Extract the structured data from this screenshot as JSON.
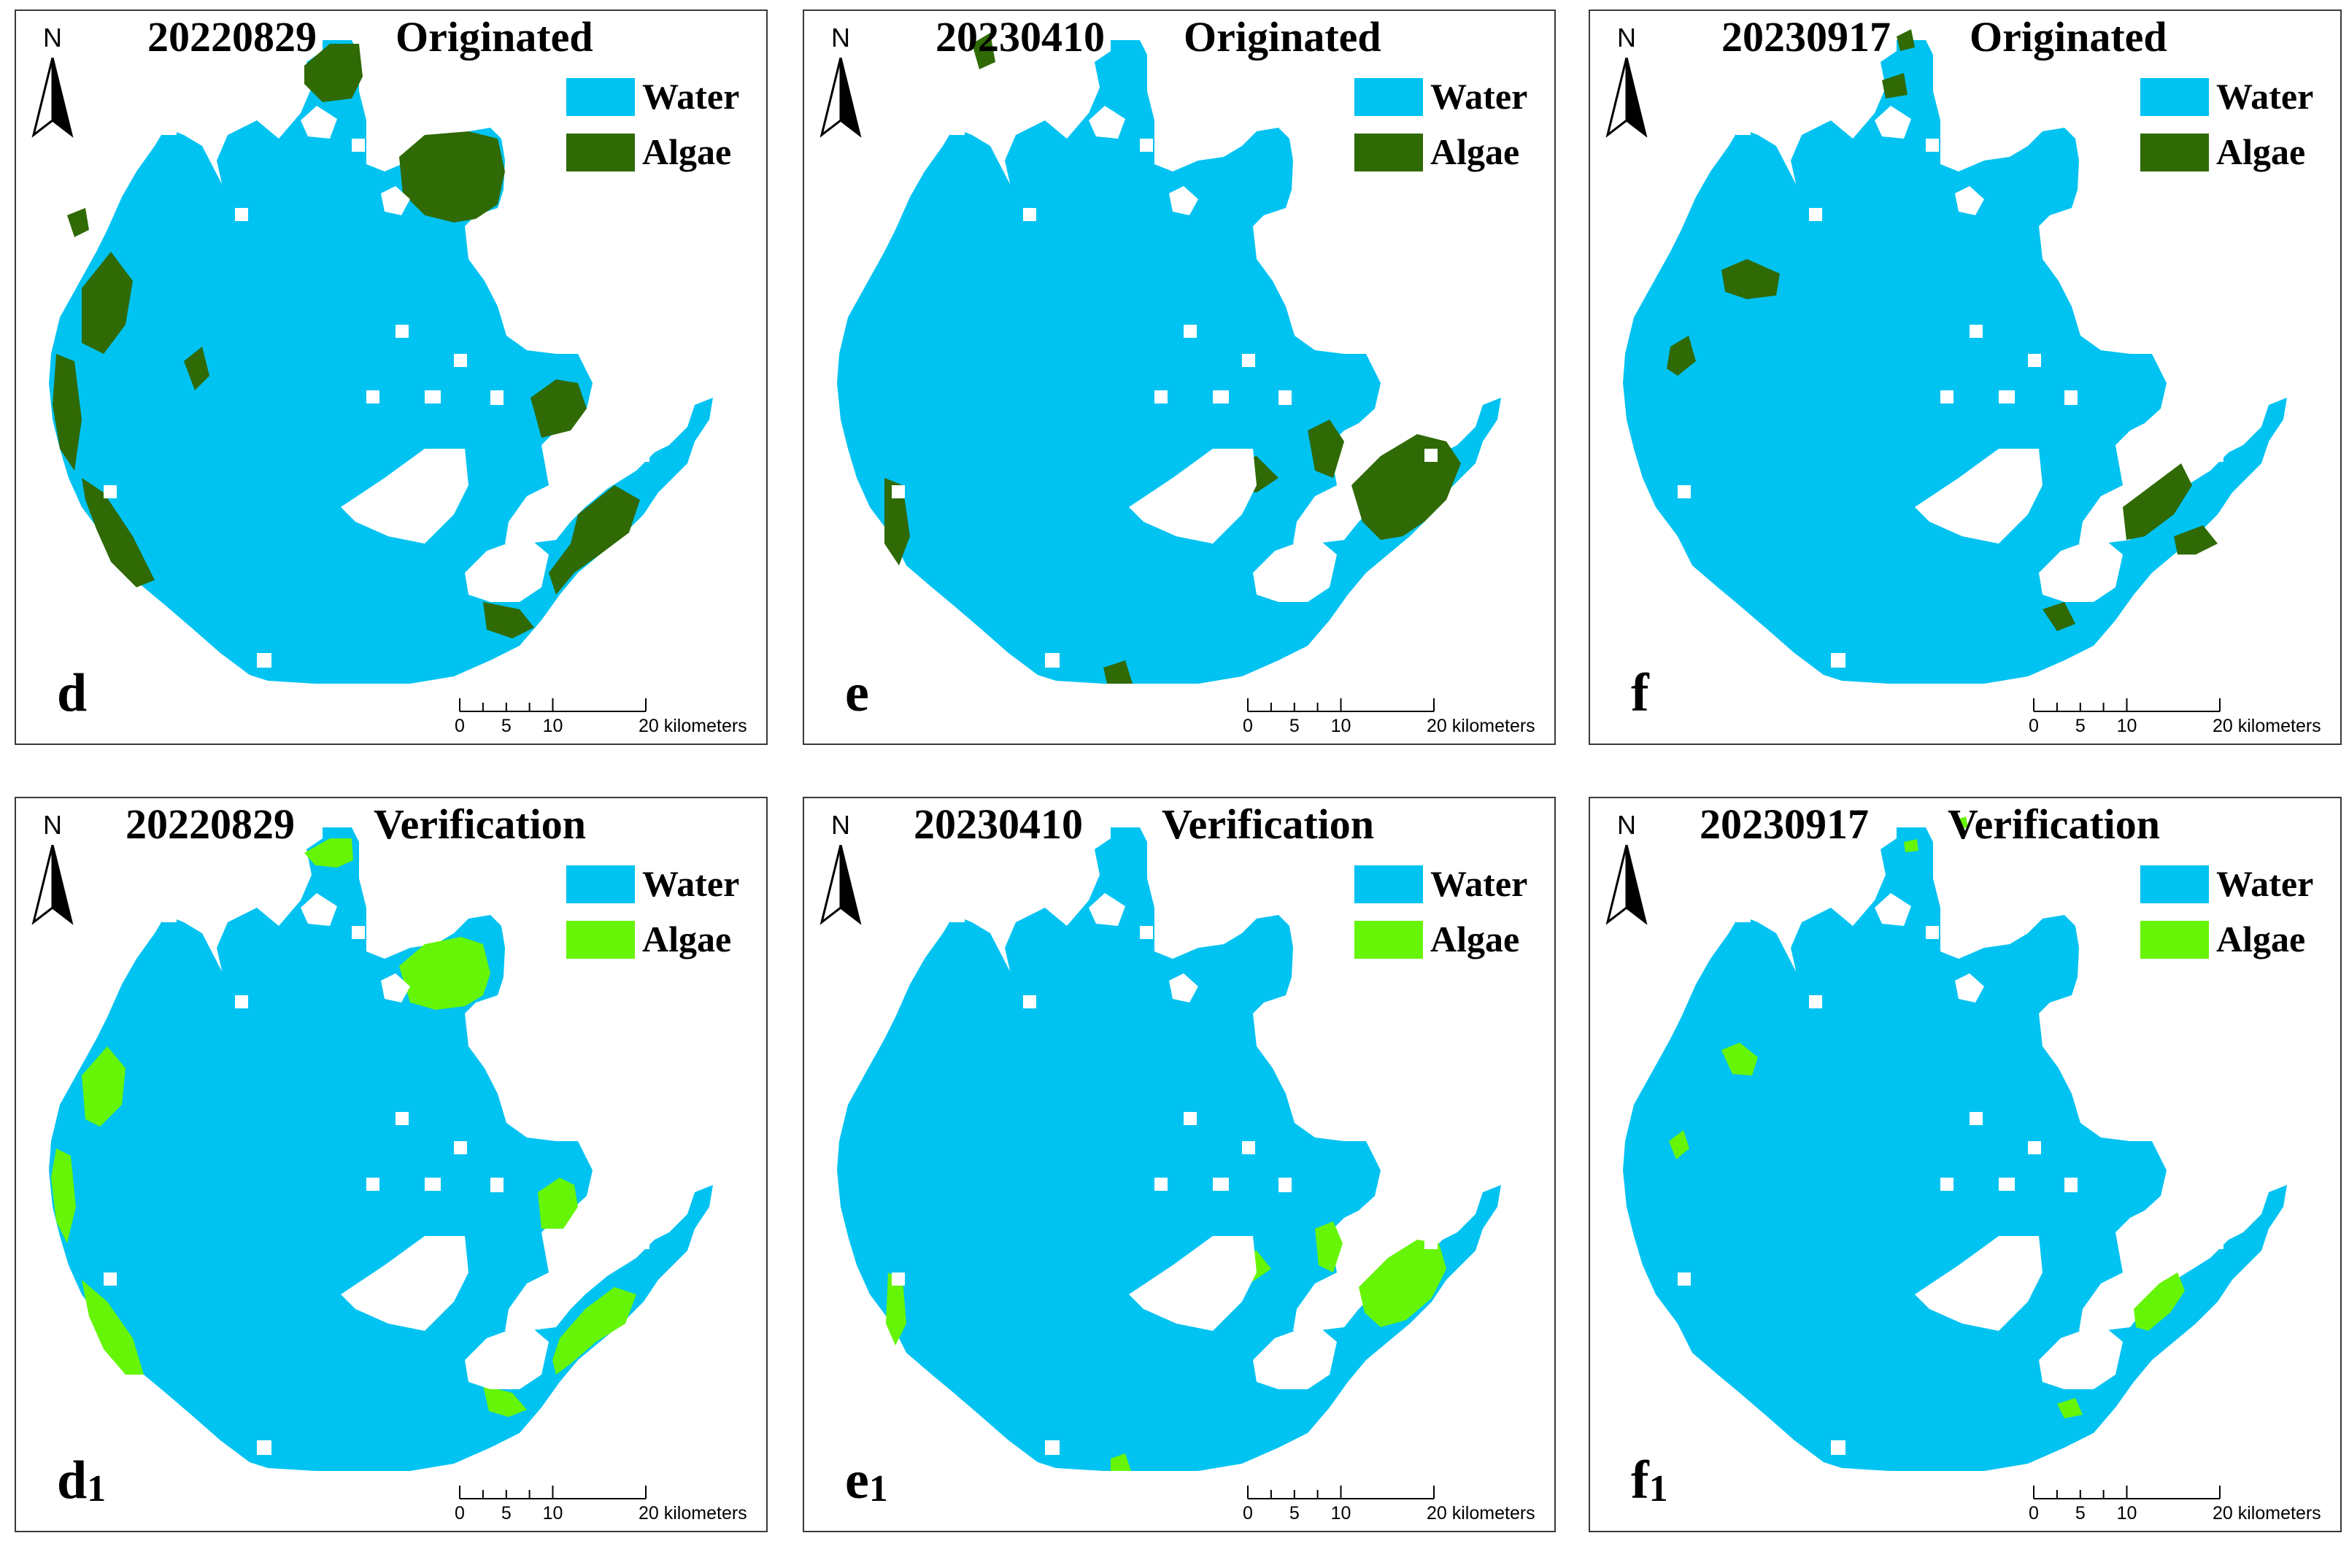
{
  "colors": {
    "water": "#00c3f2",
    "algae_originated": "#2f6a05",
    "algae_verification": "#66f507",
    "border": "#3a3a3a"
  },
  "legend": {
    "water_label": "Water",
    "algae_label": "Algae"
  },
  "north_label": "N",
  "scale": {
    "ticks": [
      "0",
      "5",
      "10"
    ],
    "end_label": "20 kilometers"
  },
  "panels": [
    {
      "date": "20220829",
      "stage": "Originated",
      "letter": "d",
      "sub": "",
      "algae": "dark"
    },
    {
      "date": "20230410",
      "stage": "Originated",
      "letter": "e",
      "sub": "",
      "algae": "dark"
    },
    {
      "date": "20230917",
      "stage": "Originated",
      "letter": "f",
      "sub": "",
      "algae": "dark"
    },
    {
      "date": "20220829",
      "stage": "Verification",
      "letter": "d",
      "sub": "1",
      "algae": "light"
    },
    {
      "date": "20230410",
      "stage": "Verification",
      "letter": "e",
      "sub": "1",
      "algae": "light"
    },
    {
      "date": "20230917",
      "stage": "Verification",
      "letter": "f",
      "sub": "1",
      "algae": "light"
    }
  ]
}
